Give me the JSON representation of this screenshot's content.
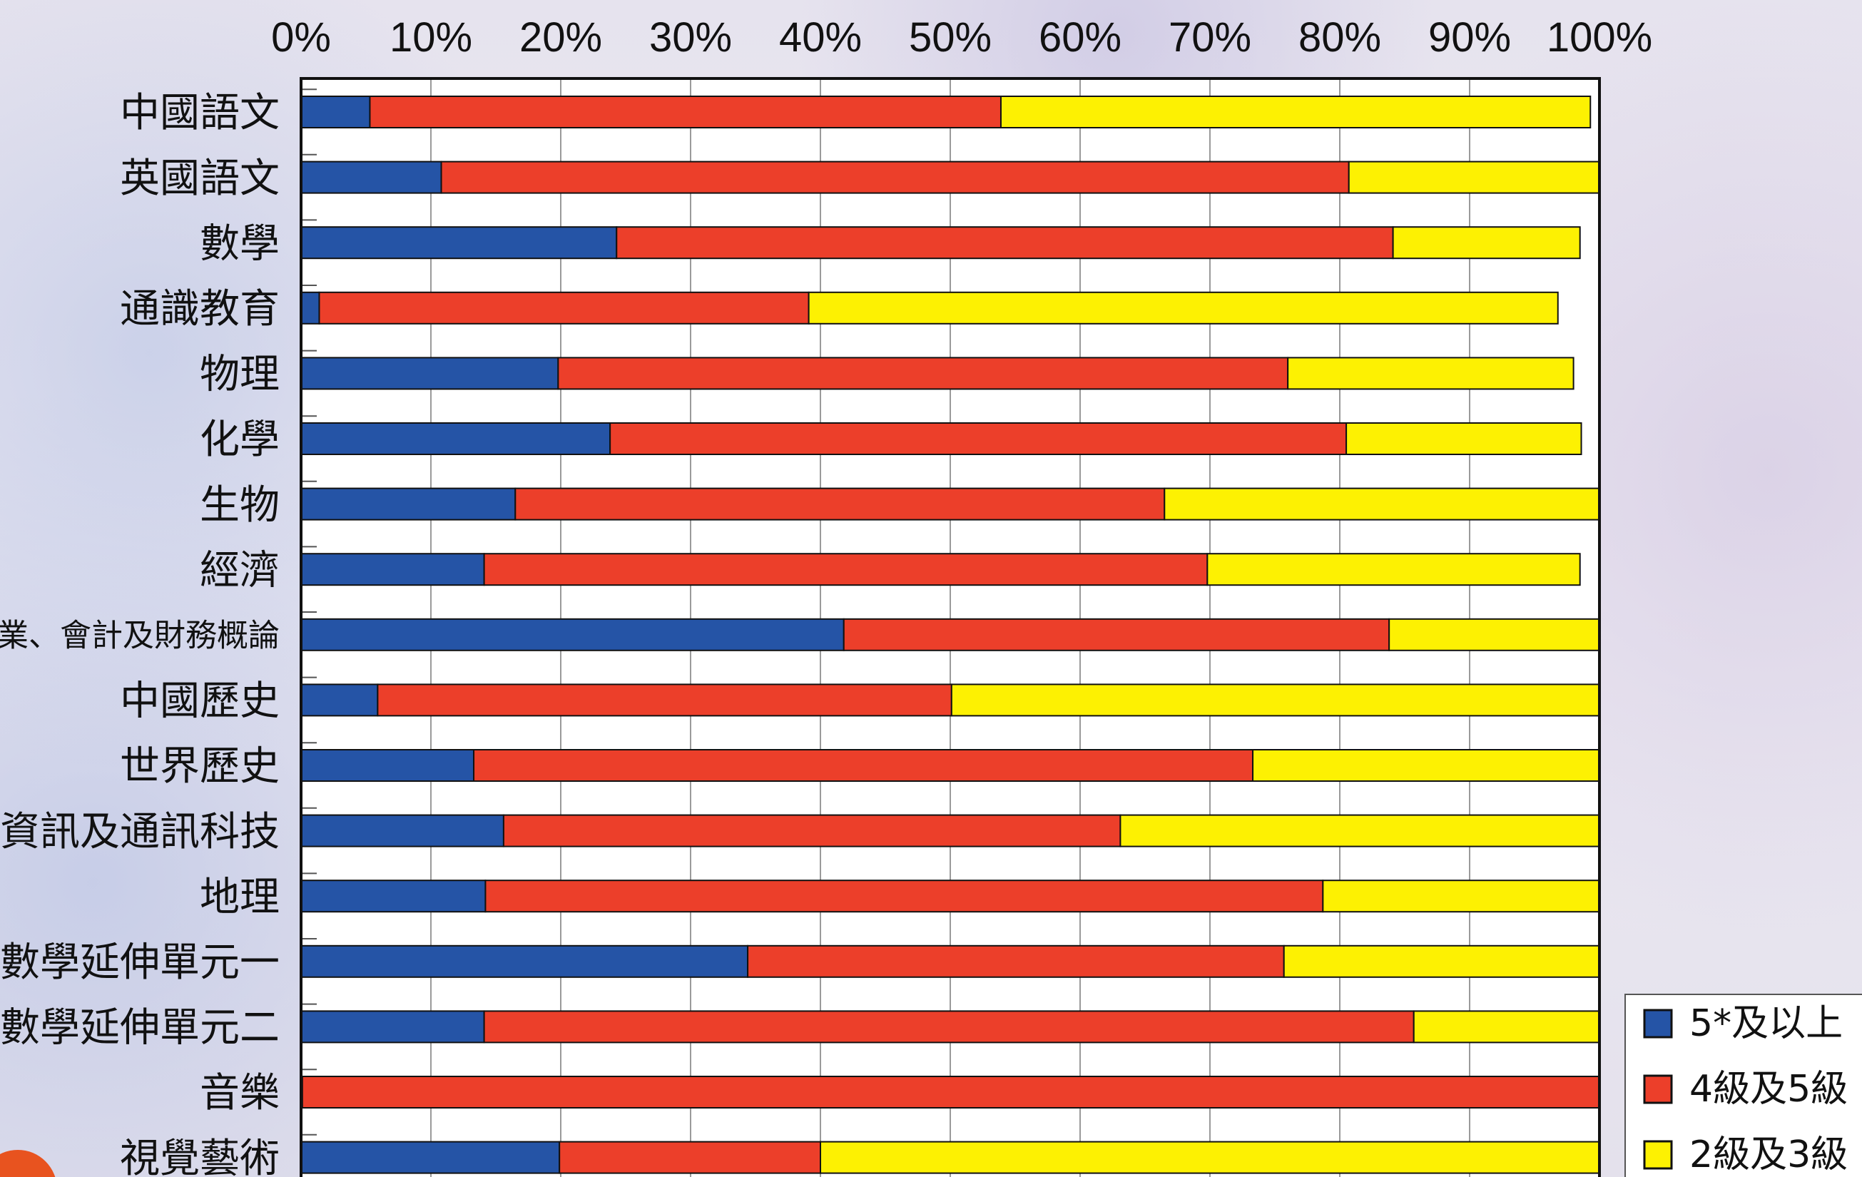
{
  "chart_data": {
    "type": "bar",
    "orientation": "horizontal",
    "stacked": true,
    "percent_axis": true,
    "x_ticks": [
      "0%",
      "10%",
      "20%",
      "30%",
      "40%",
      "50%",
      "60%",
      "70%",
      "80%",
      "90%",
      "100%"
    ],
    "xlim": [
      0,
      100
    ],
    "grid": true,
    "legend_position": "bottom-right",
    "categories": [
      "中國語文",
      "英國語文",
      "數學",
      "通識教育",
      "物理",
      "化學",
      "生物",
      "經濟",
      "企業、會計及財務概論",
      "中國歷史",
      "世界歷史",
      "資訊及通訊科技",
      "地理",
      "數學延伸單元一",
      "數學延伸單元二",
      "音樂",
      "視覺藝術"
    ],
    "series": [
      {
        "name": "5*及以上",
        "color": "#2554a6",
        "values": [
          5.3,
          10.8,
          24.3,
          1.4,
          19.8,
          23.8,
          16.5,
          14.1,
          41.8,
          5.9,
          13.3,
          15.6,
          14.2,
          34.4,
          14.1,
          0.1,
          19.9
        ]
      },
      {
        "name": "4級及5級",
        "color": "#ec3f2a",
        "values": [
          48.6,
          69.9,
          59.8,
          37.7,
          56.2,
          56.7,
          50.0,
          55.7,
          42.0,
          44.2,
          60.0,
          47.5,
          64.5,
          41.3,
          71.6,
          99.9,
          20.1
        ]
      },
      {
        "name": "2級及3級",
        "color": "#fdf102",
        "values": [
          45.4,
          19.3,
          14.4,
          57.7,
          22.0,
          18.1,
          33.5,
          28.7,
          16.2,
          49.9,
          26.7,
          36.9,
          21.3,
          24.3,
          14.3,
          0.0,
          60.0
        ]
      }
    ]
  },
  "corner_badge_color": "#e8531f"
}
